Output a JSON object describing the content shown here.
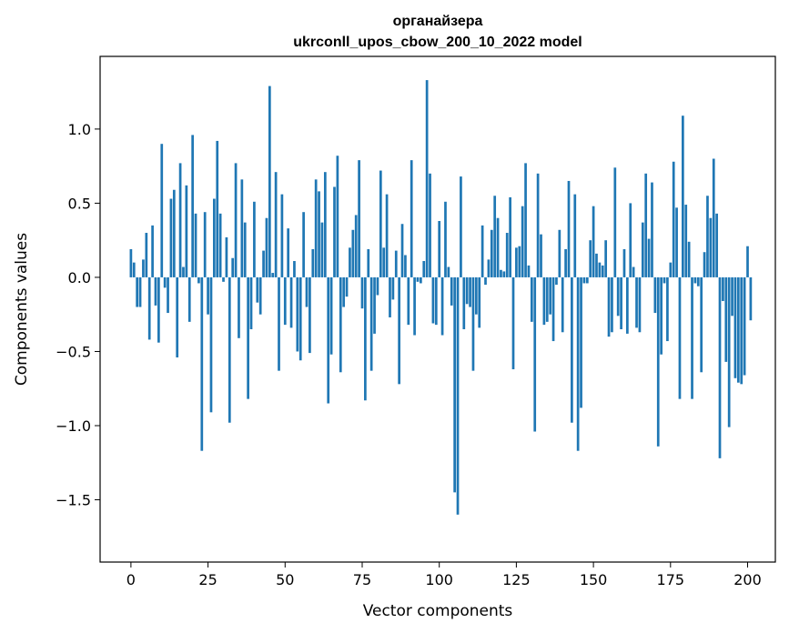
{
  "chart_data": {
    "type": "bar",
    "title": "органайзера",
    "subtitle": "ukrconll_upos_cbow_200_10_2022 model",
    "xlabel": "Vector components",
    "ylabel": "Components values",
    "xlim": [
      -10,
      209
    ],
    "ylim": [
      -1.92,
      1.49
    ],
    "xticks": [
      0,
      25,
      50,
      75,
      100,
      125,
      150,
      175,
      200
    ],
    "yticks": [
      -1.5,
      -1.0,
      -0.5,
      0.0,
      0.5,
      1.0
    ],
    "xtick_labels": [
      "0",
      "25",
      "50",
      "75",
      "100",
      "125",
      "150",
      "175",
      "200"
    ],
    "ytick_labels": [
      "−1.5",
      "−1.0",
      "−0.5",
      "0.0",
      "0.5",
      "1.0"
    ],
    "bar_color": "#1f77b4",
    "values": [
      0.19,
      0.1,
      -0.2,
      -0.2,
      0.12,
      0.3,
      -0.42,
      0.35,
      -0.19,
      -0.44,
      0.9,
      -0.07,
      -0.24,
      0.53,
      0.59,
      -0.54,
      0.77,
      0.07,
      0.62,
      -0.3,
      0.96,
      0.43,
      -0.04,
      -1.17,
      0.44,
      -0.25,
      -0.91,
      0.53,
      0.92,
      0.43,
      -0.03,
      0.27,
      -0.98,
      0.13,
      0.77,
      -0.41,
      0.66,
      0.37,
      -0.82,
      -0.35,
      0.51,
      -0.17,
      -0.25,
      0.18,
      0.4,
      1.29,
      0.03,
      0.71,
      -0.63,
      0.56,
      -0.32,
      0.33,
      -0.34,
      0.11,
      -0.5,
      -0.56,
      0.44,
      -0.2,
      -0.51,
      0.19,
      0.66,
      0.58,
      0.37,
      0.71,
      -0.85,
      -0.52,
      0.61,
      0.82,
      -0.64,
      -0.2,
      -0.13,
      0.2,
      0.32,
      0.42,
      0.79,
      -0.21,
      -0.83,
      0.19,
      -0.63,
      -0.38,
      -0.12,
      0.72,
      0.2,
      0.56,
      -0.27,
      -0.15,
      0.18,
      -0.72,
      0.36,
      0.15,
      -0.32,
      0.79,
      -0.39,
      -0.03,
      -0.04,
      0.11,
      1.33,
      0.7,
      -0.31,
      -0.32,
      0.38,
      -0.39,
      0.51,
      0.07,
      -0.19,
      -1.45,
      -1.6,
      0.68,
      -0.35,
      -0.18,
      -0.2,
      -0.63,
      -0.25,
      -0.34,
      0.35,
      -0.05,
      0.12,
      0.32,
      0.55,
      0.4,
      0.05,
      0.04,
      0.3,
      0.54,
      -0.62,
      0.2,
      0.21,
      0.48,
      0.77,
      0.08,
      -0.3,
      -1.04,
      0.7,
      0.29,
      -0.32,
      -0.3,
      -0.25,
      -0.43,
      -0.05,
      0.32,
      -0.37,
      0.19,
      0.65,
      -0.98,
      0.56,
      -1.17,
      -0.88,
      -0.04,
      -0.04,
      0.25,
      0.48,
      0.16,
      0.1,
      0.08,
      0.25,
      -0.4,
      -0.37,
      0.74,
      -0.26,
      -0.35,
      0.19,
      -0.38,
      0.5,
      0.07,
      -0.34,
      -0.37,
      0.37,
      0.7,
      0.26,
      0.64,
      -0.24,
      -1.14,
      -0.52,
      -0.04,
      -0.43,
      0.1,
      0.78,
      0.47,
      -0.82,
      1.09,
      0.49,
      0.24,
      -0.82,
      -0.04,
      -0.06,
      -0.64,
      0.17,
      0.55,
      0.4,
      0.8,
      0.43,
      -1.22,
      -0.16,
      -0.57,
      -1.01,
      -0.26,
      -0.68,
      -0.71,
      -0.72,
      -0.66,
      0.21,
      -0.29
    ]
  }
}
